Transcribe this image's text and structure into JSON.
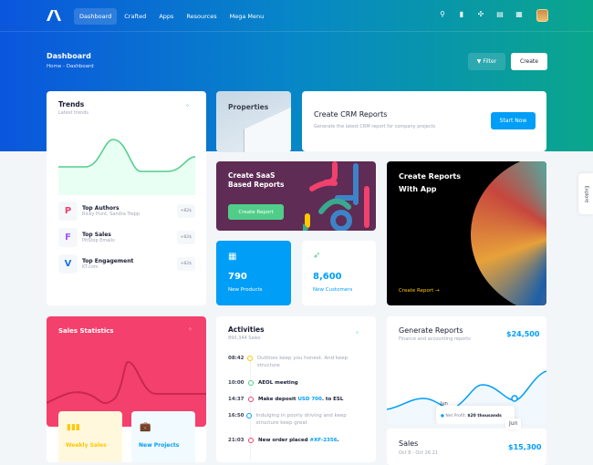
{
  "nav": {
    "items": [
      "Dashboard",
      "Crafted",
      "Apps",
      "Resources",
      "Mega Menu"
    ],
    "active": "Dashboard"
  },
  "toolbar": {
    "icons": [
      "search-icon",
      "chart-icon",
      "network-icon",
      "chat-icon",
      "grid-icon"
    ]
  },
  "page": {
    "title": "Dashboard",
    "breadcrumb": [
      "Home",
      "-",
      "Dashboard"
    ],
    "filter_label": "Filter",
    "create_label": "Create"
  },
  "trends": {
    "title": "Trends",
    "subtitle": "Latest trends",
    "items": [
      {
        "name": "Top Authors",
        "sub": "Ricky Hunt, Sandra Trepp",
        "badge": "+82$",
        "icon": "P"
      },
      {
        "name": "Top Sales",
        "sub": "PitStop Emails",
        "badge": "+82$",
        "icon": "F"
      },
      {
        "name": "Top Engagement",
        "sub": "KT.com",
        "badge": "+82$",
        "icon": "V"
      }
    ]
  },
  "properties": {
    "title": "Properties"
  },
  "crm": {
    "title": "Create CRM Reports",
    "subtitle": "Generate the latest CRM report for company projects",
    "button": "Start Now"
  },
  "saas": {
    "title1": "Create SaaS",
    "title2": "Based Reports",
    "button": "Create Report"
  },
  "app": {
    "title1": "Create Reports",
    "title2": "With App",
    "link": "Create Report"
  },
  "products": {
    "value": "790",
    "label": "New Products"
  },
  "customers": {
    "value": "8,600",
    "label": "New Customers"
  },
  "sales_stats": {
    "title": "Sales Statistics",
    "tiles": [
      "Weekly Sales",
      "New Projects"
    ]
  },
  "activities": {
    "title": "Activities",
    "subtitle": "890,344 Sales",
    "items": [
      {
        "time": "08:42",
        "text": "Outlines keep you honest. And keep structure",
        "color": "#ffc700",
        "bold": false
      },
      {
        "time": "10:00",
        "text": "AEOL meeting",
        "color": "#50cd89",
        "bold": true
      },
      {
        "time": "14:37",
        "pre": "Make deposit ",
        "link": "USD 700",
        "post": ". to ESL",
        "color": "#f1416c",
        "bold": true
      },
      {
        "time": "16:50",
        "text": "Indulging in poorly driving and keep structure keep great",
        "color": "#009ef7",
        "bold": false
      },
      {
        "time": "21:03",
        "pre": "New order placed ",
        "link": "#XF-2356",
        "post": ".",
        "color": "#f1416c",
        "bold": true
      }
    ]
  },
  "generate": {
    "title": "Generate Reports",
    "subtitle": "Finance and accounting reports",
    "amount": "$24,500",
    "tooltip_month": "Jun",
    "tooltip_label": "Net Profit:",
    "tooltip_value": "$20 thousands",
    "axis_label": "Jun"
  },
  "sales": {
    "title": "Sales",
    "subtitle": "Oct 8 - Oct 26 21",
    "amount": "$15,300"
  },
  "explore": {
    "label": "Explore"
  },
  "colors": {
    "primary": "#009ef7",
    "success": "#50cd89",
    "danger": "#f1416c",
    "warning": "#ffc700",
    "saas_bg": "#5e2c54"
  }
}
